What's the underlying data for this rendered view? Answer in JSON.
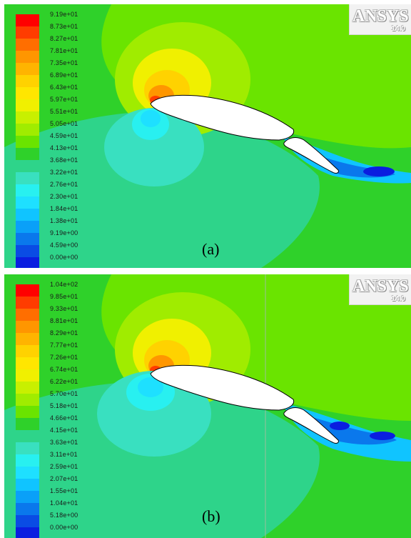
{
  "panel_a": {
    "caption": "(a)",
    "logo": {
      "brand": "ANSYS",
      "version": "14.0"
    },
    "legend": {
      "labels": [
        "9.19e+01",
        "8.73e+01",
        "8.27e+01",
        "7.81e+01",
        "7.35e+01",
        "6.89e+01",
        "6.43e+01",
        "5.97e+01",
        "5.51e+01",
        "5.05e+01",
        "4.59e+01",
        "4.13e+01",
        "3.68e+01",
        "3.22e+01",
        "2.76e+01",
        "2.30e+01",
        "1.84e+01",
        "1.38e+01",
        "9.19e+00",
        "4.59e+00",
        "0.00e+00"
      ],
      "colors": [
        "#ff0000",
        "#ff3c00",
        "#ff6e00",
        "#ff9600",
        "#ffb400",
        "#ffd200",
        "#ffe600",
        "#f0f000",
        "#c8f000",
        "#a0ec00",
        "#6ae400",
        "#2fd12a",
        "#2ed48a",
        "#39e0c0",
        "#28f0f0",
        "#1ee0ff",
        "#10c4ff",
        "#0aa0f8",
        "#0a78ec",
        "#0a4ce4",
        "#0a1ee0"
      ]
    }
  },
  "panel_b": {
    "caption": "(b)",
    "logo": {
      "brand": "ANSYS",
      "version": "14.0"
    },
    "legend": {
      "labels": [
        "1.04e+02",
        "9.85e+01",
        "9.33e+01",
        "8.81e+01",
        "8.29e+01",
        "7.77e+01",
        "7.26e+01",
        "6.74e+01",
        "6.22e+01",
        "5.70e+01",
        "5.18e+01",
        "4.66e+01",
        "4.15e+01",
        "3.63e+01",
        "3.11e+01",
        "2.59e+01",
        "2.07e+01",
        "1.55e+01",
        "1.04e+01",
        "5.18e+00",
        "0.00e+00"
      ],
      "colors": [
        "#ff0000",
        "#ff3c00",
        "#ff6e00",
        "#ff9600",
        "#ffb400",
        "#ffd200",
        "#ffe600",
        "#f0f000",
        "#c8f000",
        "#a0ec00",
        "#6ae400",
        "#2fd12a",
        "#2ed48a",
        "#39e0c0",
        "#28f0f0",
        "#1ee0ff",
        "#10c4ff",
        "#0aa0f8",
        "#0a78ec",
        "#0a4ce4",
        "#0a1ee0"
      ]
    }
  }
}
